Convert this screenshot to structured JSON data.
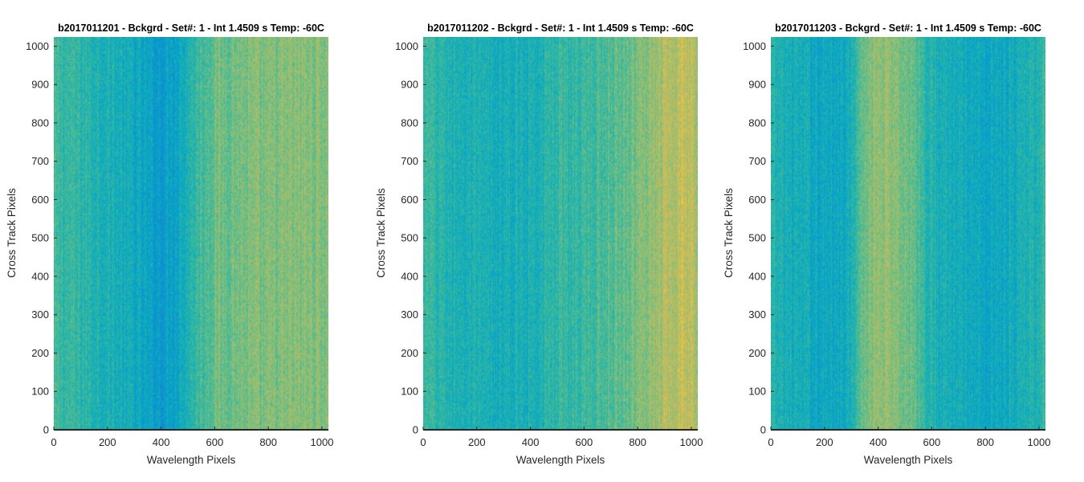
{
  "chart_data": [
    {
      "type": "heatmap",
      "title": "b2017011201 - Bckgrd - Set#: 1 - Int 1.4509 s Temp: -60C",
      "xlabel": "Wavelength Pixels",
      "ylabel": "Cross Track Pixels",
      "xlim": [
        0,
        1024
      ],
      "ylim": [
        0,
        1024
      ],
      "xticks": [
        0,
        200,
        400,
        600,
        800,
        1000
      ],
      "yticks": [
        0,
        100,
        200,
        300,
        400,
        500,
        600,
        700,
        800,
        900,
        1000
      ],
      "colormap": "parula",
      "column_profile_x": [
        0,
        100,
        200,
        300,
        350,
        400,
        450,
        500,
        550,
        600,
        700,
        800,
        900,
        1024
      ],
      "column_profile_level": [
        0.56,
        0.53,
        0.49,
        0.44,
        0.4,
        0.38,
        0.42,
        0.5,
        0.58,
        0.64,
        0.66,
        0.66,
        0.68,
        0.68
      ]
    },
    {
      "type": "heatmap",
      "title": "b2017011202 - Bckgrd - Set#: 1 - Int 1.4509 s Temp: -60C",
      "xlabel": "Wavelength Pixels",
      "ylabel": "Cross Track Pixels",
      "xlim": [
        0,
        1024
      ],
      "ylim": [
        0,
        1024
      ],
      "xticks": [
        0,
        200,
        400,
        600,
        800,
        1000
      ],
      "yticks": [
        0,
        100,
        200,
        300,
        400,
        500,
        600,
        700,
        800,
        900,
        1000
      ],
      "colormap": "parula",
      "column_profile_x": [
        0,
        100,
        200,
        300,
        400,
        500,
        600,
        700,
        800,
        850,
        900,
        950,
        1000,
        1024
      ],
      "column_profile_level": [
        0.55,
        0.5,
        0.47,
        0.46,
        0.49,
        0.53,
        0.56,
        0.6,
        0.66,
        0.71,
        0.76,
        0.79,
        0.78,
        0.74
      ]
    },
    {
      "type": "heatmap",
      "title": "b2017011203 - Bckgrd - Set#: 1 - Int 1.4509 s Temp: -60C",
      "xlabel": "Wavelength Pixels",
      "ylabel": "Cross Track Pixels",
      "xlim": [
        0,
        1024
      ],
      "ylim": [
        0,
        1024
      ],
      "xticks": [
        0,
        200,
        400,
        600,
        800,
        1000
      ],
      "yticks": [
        0,
        100,
        200,
        300,
        400,
        500,
        600,
        700,
        800,
        900,
        1000
      ],
      "colormap": "parula",
      "column_profile_x": [
        0,
        100,
        200,
        300,
        350,
        400,
        450,
        500,
        550,
        600,
        700,
        800,
        900,
        1000,
        1024
      ],
      "column_profile_level": [
        0.5,
        0.46,
        0.43,
        0.47,
        0.64,
        0.72,
        0.7,
        0.67,
        0.57,
        0.5,
        0.46,
        0.43,
        0.46,
        0.51,
        0.55
      ]
    }
  ]
}
